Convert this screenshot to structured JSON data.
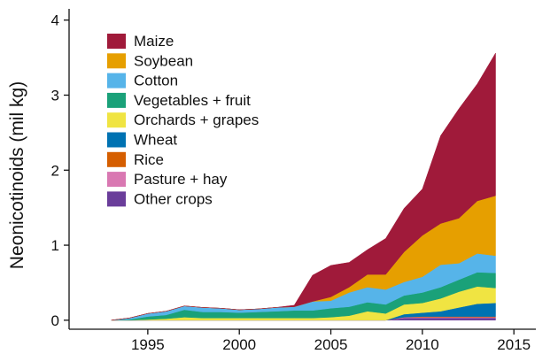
{
  "chart_data": {
    "type": "area",
    "stacked": true,
    "title": "",
    "xlabel": "",
    "ylabel": "Neonicotinoids (mil kg)",
    "xlim": [
      1990.7,
      2016.2
    ],
    "ylim": [
      -0.12,
      4.15
    ],
    "x_ticks": [
      1995,
      2000,
      2005,
      2010,
      2015
    ],
    "y_ticks": [
      0,
      1,
      2,
      3,
      4
    ],
    "grid": false,
    "legend_position": "top-left",
    "x": [
      1993,
      1994,
      1995,
      1996,
      1997,
      1998,
      1999,
      2000,
      2001,
      2002,
      2003,
      2004,
      2005,
      2006,
      2007,
      2008,
      2009,
      2010,
      2011,
      2012,
      2013,
      2014
    ],
    "series": [
      {
        "name": "Other crops",
        "color": "#6A3D9A",
        "values": [
          0.0,
          0.0,
          0.0,
          0.0,
          0.0,
          0.0,
          0.0,
          0.0,
          0.0,
          0.0,
          0.0,
          0.0,
          0.0,
          0.0,
          0.0,
          0.0,
          0.03,
          0.03,
          0.03,
          0.03,
          0.03,
          0.03
        ]
      },
      {
        "name": "Pasture + hay",
        "color": "#D978B2",
        "values": [
          0.0,
          0.0,
          0.0,
          0.0,
          0.0,
          0.0,
          0.0,
          0.0,
          0.0,
          0.0,
          0.0,
          0.0,
          0.0,
          0.0,
          0.0,
          0.0,
          0.01,
          0.01,
          0.01,
          0.01,
          0.01,
          0.01
        ]
      },
      {
        "name": "Rice",
        "color": "#D55E00",
        "values": [
          0.0,
          0.0,
          0.0,
          0.0,
          0.0,
          0.0,
          0.0,
          0.0,
          0.0,
          0.0,
          0.0,
          0.0,
          0.0,
          0.0,
          0.0,
          0.0,
          0.0,
          0.01,
          0.01,
          0.01,
          0.01,
          0.01
        ]
      },
      {
        "name": "Wheat",
        "color": "#0072B2",
        "values": [
          0.0,
          0.0,
          0.0,
          0.0,
          0.0,
          0.0,
          0.0,
          0.0,
          0.0,
          0.0,
          0.0,
          0.0,
          0.0,
          0.0,
          0.0,
          0.0,
          0.04,
          0.05,
          0.07,
          0.12,
          0.17,
          0.18
        ]
      },
      {
        "name": "Orchards + grapes",
        "color": "#F0E442",
        "values": [
          0.0,
          0.0,
          0.01,
          0.02,
          0.04,
          0.03,
          0.03,
          0.03,
          0.03,
          0.03,
          0.03,
          0.03,
          0.04,
          0.06,
          0.12,
          0.09,
          0.13,
          0.13,
          0.17,
          0.21,
          0.23,
          0.2
        ]
      },
      {
        "name": "Vegetables + fruit",
        "color": "#1AA179",
        "values": [
          0.0,
          0.01,
          0.04,
          0.05,
          0.1,
          0.08,
          0.08,
          0.07,
          0.08,
          0.09,
          0.1,
          0.1,
          0.12,
          0.12,
          0.12,
          0.12,
          0.12,
          0.14,
          0.15,
          0.16,
          0.19,
          0.2
        ]
      },
      {
        "name": "Cotton",
        "color": "#56B4E9",
        "values": [
          0.0,
          0.02,
          0.04,
          0.05,
          0.05,
          0.06,
          0.05,
          0.04,
          0.04,
          0.05,
          0.05,
          0.12,
          0.1,
          0.19,
          0.2,
          0.2,
          0.18,
          0.21,
          0.3,
          0.22,
          0.25,
          0.23
        ]
      },
      {
        "name": "Soybean",
        "color": "#E69F00",
        "values": [
          0.0,
          0.0,
          0.0,
          0.0,
          0.0,
          0.0,
          0.0,
          0.0,
          0.0,
          0.0,
          0.0,
          0.0,
          0.05,
          0.07,
          0.17,
          0.2,
          0.4,
          0.55,
          0.55,
          0.6,
          0.7,
          0.8
        ]
      },
      {
        "name": "Maize",
        "color": "#A01A3A",
        "values": [
          0.0,
          0.0,
          0.0,
          0.0,
          0.0,
          0.0,
          0.0,
          0.0,
          0.0,
          0.0,
          0.02,
          0.35,
          0.42,
          0.33,
          0.33,
          0.48,
          0.58,
          0.62,
          1.17,
          1.46,
          1.56,
          1.9
        ]
      }
    ]
  }
}
